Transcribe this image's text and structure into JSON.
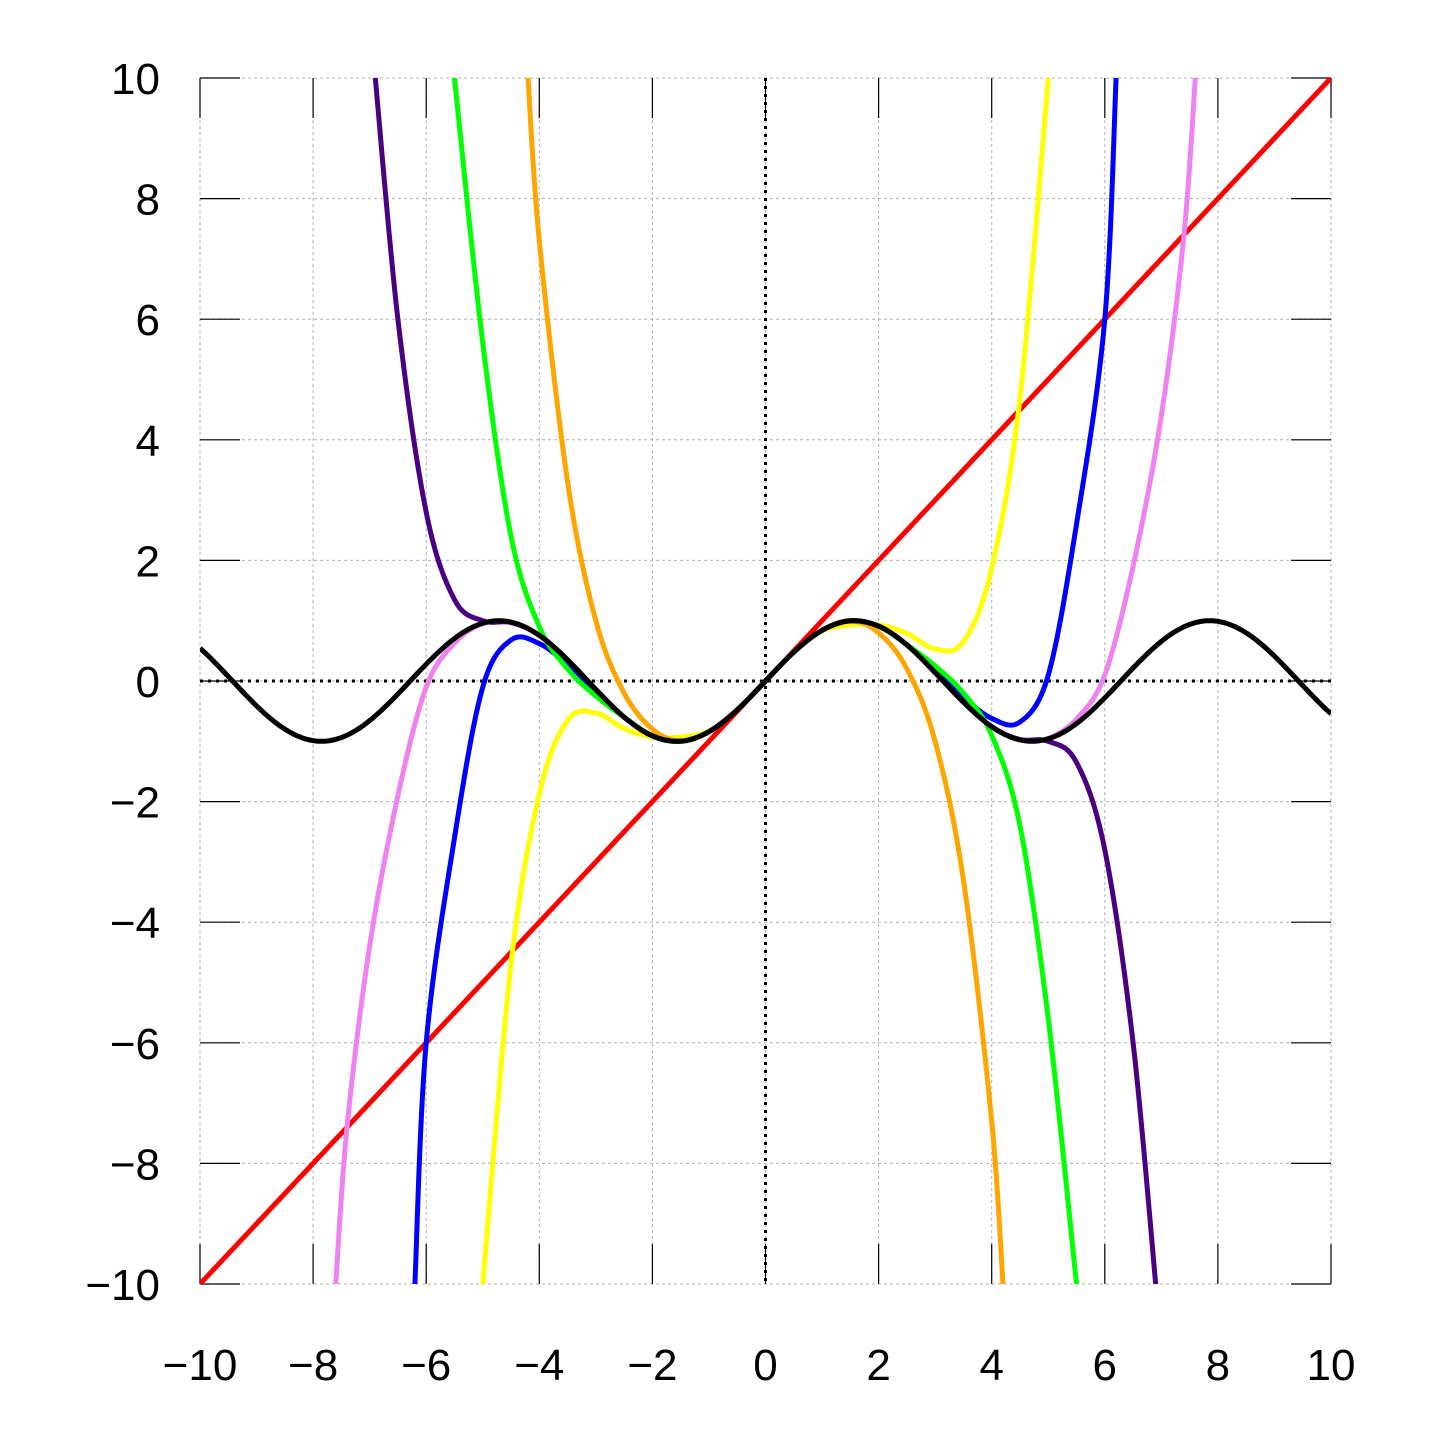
{
  "chart_data": {
    "type": "line",
    "title": "",
    "xlabel": "",
    "ylabel": "",
    "xlim": [
      -10,
      10
    ],
    "ylim": [
      -10,
      10
    ],
    "grid": true,
    "legend": "none",
    "x_ticks": [
      "−10",
      "−8",
      "−6",
      "−4",
      "−2",
      "0",
      "2",
      "4",
      "6",
      "8",
      "10"
    ],
    "y_ticks": [
      "−10",
      "−8",
      "−6",
      "−4",
      "−2",
      "0",
      "2",
      "4",
      "6",
      "8",
      "10"
    ],
    "series": [
      {
        "color": "#ff0000",
        "x": [
          -10,
          10
        ],
        "y": [
          -10,
          10
        ]
      },
      {
        "color": "#ffff00",
        "x": [
          -5,
          -4.5,
          -4,
          -3.5,
          -3,
          -2.5,
          -2,
          -1.5,
          -1,
          -0.5,
          0,
          0.5,
          1,
          1.5,
          2,
          2.5,
          3,
          3.5,
          4,
          4.5,
          5
        ],
        "y": [
          -10,
          -4.69,
          -1.87,
          -0.65,
          -0.53,
          -0.79,
          -0.93,
          -0.93,
          -0.83,
          -0.48,
          0,
          0.48,
          0.83,
          0.93,
          0.93,
          0.79,
          0.53,
          0.65,
          1.87,
          4.69,
          10
        ]
      },
      {
        "color": "#0000ff",
        "x": [
          -6.2,
          -6,
          -5.5,
          -5,
          -4.5,
          -4,
          -3.5,
          -3,
          -2.5,
          -2,
          -1.5,
          -1,
          -0.5,
          0,
          0.5,
          1,
          1.5,
          2,
          2.5,
          3,
          3.5,
          4,
          4.5,
          5,
          5.5,
          6,
          6.2
        ],
        "y": [
          -10,
          -6,
          -2.6,
          -0.1,
          0.68,
          0.62,
          0.27,
          -0.17,
          -0.6,
          -0.91,
          -1.0,
          -0.84,
          -0.48,
          0,
          0.48,
          0.84,
          1.0,
          0.91,
          0.6,
          0.17,
          -0.27,
          -0.62,
          -0.68,
          0.1,
          2.6,
          6,
          10
        ]
      },
      {
        "color": "#ee82ee",
        "x": [
          -7.6,
          -7.4,
          -7,
          -6.5,
          -6,
          -5.5,
          -5,
          -4.5,
          -4,
          -3.5,
          -3,
          -2.5,
          -2,
          -1.5,
          -1,
          -0.5,
          0,
          0.5,
          1,
          1.5,
          2,
          2.5,
          3,
          3.5,
          4,
          4.5,
          5,
          5.5,
          6,
          6.5,
          7,
          7.4,
          7.6
        ],
        "y": [
          -10,
          -7.4,
          -4.4,
          -1.9,
          -0.1,
          0.63,
          0.95,
          0.97,
          0.76,
          0.35,
          -0.14,
          -0.6,
          -0.91,
          -1.0,
          -0.84,
          -0.48,
          0,
          0.48,
          0.84,
          1.0,
          0.91,
          0.6,
          0.14,
          -0.35,
          -0.76,
          -0.97,
          -0.95,
          -0.63,
          0.1,
          1.9,
          4.4,
          7.4,
          10
        ]
      },
      {
        "color": "#ffa500",
        "x": [
          -4.2,
          -4,
          -3.5,
          -3,
          -2.5,
          -2,
          -1.5,
          -1,
          -0.5,
          0,
          0.5,
          1,
          1.5,
          2,
          2.5,
          3,
          3.5,
          4,
          4.2
        ],
        "y": [
          10,
          7.3,
          3.3,
          1.0,
          -0.2,
          -0.8,
          -1.0,
          -0.84,
          -0.48,
          0,
          0.48,
          0.84,
          1.0,
          0.8,
          0.2,
          -1.0,
          -3.3,
          -7.3,
          -10
        ]
      },
      {
        "color": "#00ff00",
        "x": [
          -5.5,
          -5,
          -4.5,
          -4,
          -3.5,
          -3,
          -2.5,
          -2,
          -1.5,
          -1,
          -0.5,
          0,
          0.5,
          1,
          1.5,
          2,
          2.5,
          3,
          3.5,
          4,
          4.5,
          5,
          5.5
        ],
        "y": [
          10,
          5.6,
          2.4,
          0.9,
          0.2,
          -0.25,
          -0.6,
          -0.91,
          -1.0,
          -0.84,
          -0.48,
          0,
          0.48,
          0.84,
          1.0,
          0.91,
          0.6,
          0.25,
          -0.2,
          -0.9,
          -2.4,
          -5.6,
          -10
        ]
      },
      {
        "color": "#4b0082",
        "x": [
          -6.9,
          -6.5,
          -6,
          -5.5,
          -5,
          -4.5,
          -4,
          -3.5,
          -3,
          -2.5,
          -2,
          -1.5,
          -1,
          -0.5,
          0,
          0.5,
          1,
          1.5,
          2,
          2.5,
          3,
          3.5,
          4,
          4.5,
          5,
          5.5,
          6,
          6.5,
          6.9
        ],
        "y": [
          10,
          6.0,
          2.8,
          1.35,
          1.0,
          0.97,
          0.76,
          0.35,
          -0.14,
          -0.6,
          -0.91,
          -1.0,
          -0.84,
          -0.48,
          0,
          0.48,
          0.84,
          1.0,
          0.91,
          0.6,
          0.14,
          -0.35,
          -0.76,
          -0.97,
          -1.0,
          -1.35,
          -2.8,
          -6.0,
          -10
        ]
      },
      {
        "color": "#000000",
        "function": "sin"
      }
    ]
  }
}
